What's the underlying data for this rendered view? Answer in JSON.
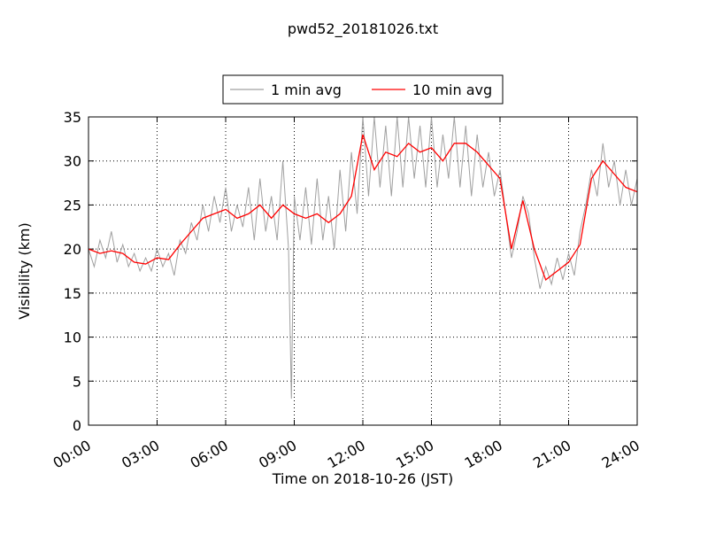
{
  "chart_data": {
    "type": "line",
    "title": "pwd52_20181026.txt",
    "x_label": "Time on 2018-10-26 (JST)",
    "y_label": "Visibility (km)",
    "xlim": [
      0,
      24
    ],
    "xticks": [
      {
        "value": 0,
        "label": "00:00"
      },
      {
        "value": 3,
        "label": "03:00"
      },
      {
        "value": 6,
        "label": "06:00"
      },
      {
        "value": 9,
        "label": "09:00"
      },
      {
        "value": 12,
        "label": "12:00"
      },
      {
        "value": 15,
        "label": "15:00"
      },
      {
        "value": 18,
        "label": "18:00"
      },
      {
        "value": 21,
        "label": "21:00"
      },
      {
        "value": 24,
        "label": "24:00"
      }
    ],
    "ylim": [
      0,
      35
    ],
    "yticks": [
      0,
      5,
      10,
      15,
      20,
      25,
      30,
      35
    ],
    "grid": true,
    "legend": "top",
    "series": [
      {
        "name": "1 min avg",
        "color": "#a0a0a0",
        "x": [
          0,
          0.25,
          0.5,
          0.75,
          1,
          1.25,
          1.5,
          1.75,
          2,
          2.25,
          2.5,
          2.75,
          3,
          3.25,
          3.5,
          3.75,
          4,
          4.25,
          4.5,
          4.75,
          5,
          5.25,
          5.5,
          5.75,
          6,
          6.25,
          6.5,
          6.75,
          7,
          7.25,
          7.5,
          7.75,
          8,
          8.25,
          8.5,
          8.75,
          8.875,
          9,
          9.25,
          9.5,
          9.75,
          10,
          10.25,
          10.5,
          10.75,
          11,
          11.25,
          11.5,
          11.75,
          12,
          12.25,
          12.5,
          12.75,
          13,
          13.25,
          13.5,
          13.75,
          14,
          14.25,
          14.5,
          14.75,
          15,
          15.25,
          15.5,
          15.75,
          16,
          16.25,
          16.5,
          16.75,
          17,
          17.25,
          17.5,
          17.75,
          18,
          18.25,
          18.5,
          18.75,
          19,
          19.25,
          19.5,
          19.75,
          20,
          20.25,
          20.5,
          20.75,
          21,
          21.25,
          21.5,
          21.75,
          22,
          22.25,
          22.5,
          22.75,
          23,
          23.25,
          23.5,
          23.75,
          24
        ],
        "values": [
          20,
          18,
          21,
          19,
          22,
          18.5,
          20.5,
          18,
          19.5,
          17.5,
          19,
          17.5,
          20,
          18,
          19.5,
          17,
          21,
          19.5,
          23,
          21,
          25,
          22,
          26,
          23,
          27,
          22,
          25,
          22.5,
          27,
          21,
          28,
          22,
          26,
          21,
          30,
          20,
          3,
          26,
          21,
          27,
          20.5,
          28,
          21,
          26,
          20,
          29,
          22,
          31,
          24,
          35,
          26,
          35,
          27,
          34,
          26,
          35,
          27,
          35,
          28,
          34,
          27,
          35,
          27,
          33,
          28,
          35,
          27,
          34,
          26,
          33,
          27,
          31,
          26,
          29,
          24,
          19,
          22,
          26,
          24,
          19,
          15.5,
          18,
          16,
          19,
          16.5,
          19.5,
          17,
          22,
          25,
          29,
          26,
          32,
          27,
          30,
          25,
          29,
          25,
          28
        ]
      },
      {
        "name": "10 min avg",
        "color": "#ff0000",
        "x": [
          0,
          0.5,
          1,
          1.5,
          2,
          2.5,
          3,
          3.5,
          4,
          4.5,
          5,
          5.5,
          6,
          6.5,
          7,
          7.5,
          8,
          8.5,
          9,
          9.5,
          10,
          10.5,
          11,
          11.5,
          12,
          12.5,
          13,
          13.5,
          14,
          14.5,
          15,
          15.5,
          16,
          16.5,
          17,
          17.5,
          18,
          18.5,
          19,
          19.5,
          20,
          20.5,
          21,
          21.5,
          22,
          22.5,
          23,
          23.5,
          24
        ],
        "values": [
          20,
          19.5,
          19.8,
          19.5,
          18.5,
          18.3,
          19,
          18.8,
          20.5,
          22,
          23.5,
          24,
          24.5,
          23.5,
          24,
          25,
          23.5,
          25,
          24,
          23.5,
          24,
          23,
          24,
          26,
          33,
          29,
          31,
          30.5,
          32,
          31,
          31.5,
          30,
          32,
          32,
          31,
          29.5,
          28,
          20,
          25.5,
          20,
          16.5,
          17.5,
          18.5,
          20.5,
          28,
          30,
          28.5,
          27,
          26.5
        ]
      }
    ]
  }
}
